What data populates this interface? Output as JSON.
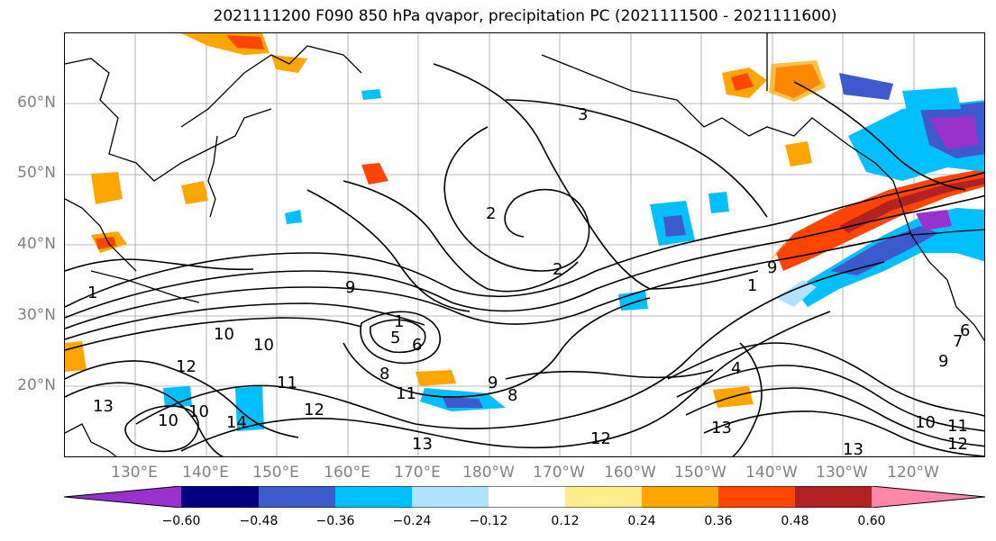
{
  "title": "2021111200 F090 850 hPa qvapor, precipitation PC (2021111500 - 2021111600)",
  "map": {
    "lat_labels": [
      "60°N",
      "50°N",
      "40°N",
      "30°N",
      "20°N"
    ],
    "lon_labels": [
      "130°E",
      "140°E",
      "150°E",
      "160°E",
      "170°E",
      "180°W",
      "170°W",
      "160°W",
      "150°W",
      "140°W",
      "130°W",
      "120°W"
    ],
    "contour_labels": [
      "3",
      "2",
      "2",
      "1",
      "1",
      "1",
      "9",
      "9",
      "10",
      "10",
      "12",
      "11",
      "13",
      "10",
      "10",
      "14",
      "12",
      "5",
      "6",
      "8",
      "11",
      "9",
      "8",
      "13",
      "12",
      "13",
      "11",
      "10",
      "12",
      "13",
      "9",
      "7",
      "6",
      "4"
    ]
  },
  "colorbar": {
    "colors": [
      "#9932cc",
      "#000080",
      "#3c5acd",
      "#00bfff",
      "#b0e2ff",
      "#ffffff",
      "#ffec8b",
      "#ffa500",
      "#ff4500",
      "#b22222",
      "#ff88aa"
    ],
    "tick_labels": [
      "−0.60",
      "−0.48",
      "−0.36",
      "−0.24",
      "−0.12",
      "0.12",
      "0.24",
      "0.36",
      "0.48",
      "0.60"
    ]
  }
}
